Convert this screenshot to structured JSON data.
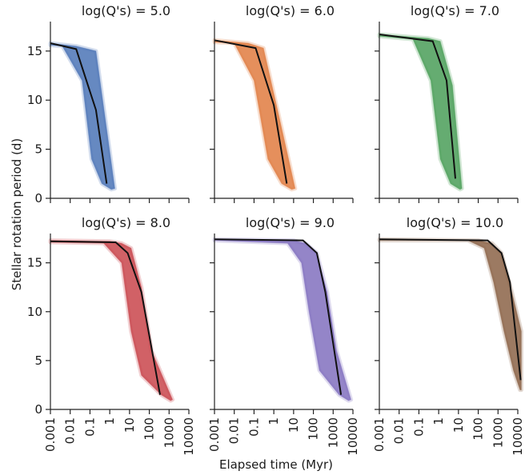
{
  "figure": {
    "xlabel": "Elapsed time (Myr)",
    "ylabel": "Stellar rotation period (d)"
  },
  "chart_data": [
    {
      "type": "area",
      "title": "log(Q's) = 5.0",
      "color": "#4b74b6",
      "x_scale": "log",
      "xlim": [
        0.001,
        10000
      ],
      "ylim": [
        0,
        18
      ],
      "x_ticks": [
        "0.001",
        "0.01",
        "0.1",
        "1",
        "10",
        "100",
        "1000",
        "10000"
      ],
      "y_ticks": [
        "0",
        "5",
        "10",
        "15"
      ],
      "band_upper": [
        [
          0.001,
          15.8
        ],
        [
          0.02,
          15.5
        ],
        [
          0.2,
          15.0
        ],
        [
          0.6,
          8.0
        ],
        [
          1.8,
          1.0
        ]
      ],
      "band_lower": [
        [
          1.2,
          0.9
        ],
        [
          0.4,
          1.5
        ],
        [
          0.12,
          4.0
        ],
        [
          0.04,
          12.0
        ],
        [
          0.004,
          15.5
        ],
        [
          0.001,
          15.6
        ]
      ],
      "median": [
        [
          0.001,
          15.8
        ],
        [
          0.02,
          15.2
        ],
        [
          0.2,
          9.0
        ],
        [
          0.7,
          1.5
        ]
      ]
    },
    {
      "type": "area",
      "title": "log(Q's) = 6.0",
      "color": "#e07b3f",
      "x_scale": "log",
      "xlim": [
        0.001,
        10000
      ],
      "ylim": [
        0,
        18
      ],
      "x_ticks": [
        "0.001",
        "0.01",
        "0.1",
        "1",
        "10",
        "100",
        "1000",
        "10000"
      ],
      "y_ticks": [
        "0",
        "5",
        "10",
        "15"
      ],
      "band_upper": [
        [
          0.001,
          16.1
        ],
        [
          0.05,
          15.8
        ],
        [
          0.3,
          15.3
        ],
        [
          2.0,
          8.0
        ],
        [
          12,
          1.0
        ]
      ],
      "band_lower": [
        [
          8,
          0.9
        ],
        [
          2.5,
          1.5
        ],
        [
          0.5,
          4.0
        ],
        [
          0.1,
          12.0
        ],
        [
          0.01,
          15.8
        ],
        [
          0.001,
          15.9
        ]
      ],
      "median": [
        [
          0.001,
          16.1
        ],
        [
          0.12,
          15.3
        ],
        [
          1.0,
          9.5
        ],
        [
          4.5,
          1.5
        ]
      ]
    },
    {
      "type": "area",
      "title": "log(Q's) = 7.0",
      "color": "#4a9e58",
      "x_scale": "log",
      "xlim": [
        0.001,
        10000
      ],
      "ylim": [
        0,
        18
      ],
      "x_ticks": [
        "0.001",
        "0.01",
        "0.1",
        "1",
        "10",
        "100",
        "1000",
        "10000"
      ],
      "y_ticks": [
        "0",
        "5",
        "10",
        "15"
      ],
      "band_upper": [
        [
          0.001,
          16.7
        ],
        [
          0.3,
          16.3
        ],
        [
          1.2,
          16.0
        ],
        [
          5,
          11.5
        ],
        [
          15,
          1.0
        ]
      ],
      "band_lower": [
        [
          12,
          0.9
        ],
        [
          4,
          1.5
        ],
        [
          1.2,
          4.0
        ],
        [
          0.4,
          12.0
        ],
        [
          0.05,
          16.2
        ],
        [
          0.001,
          16.5
        ]
      ],
      "median": [
        [
          0.001,
          16.7
        ],
        [
          0.5,
          16.0
        ],
        [
          2.5,
          12.0
        ],
        [
          7,
          2.0
        ]
      ]
    },
    {
      "type": "area",
      "title": "log(Q's) = 8.0",
      "color": "#c9454b",
      "x_scale": "log",
      "xlim": [
        0.001,
        10000
      ],
      "ylim": [
        0,
        18
      ],
      "x_ticks": [
        "0.001",
        "0.01",
        "0.1",
        "1",
        "10",
        "100",
        "1000",
        "10000"
      ],
      "y_ticks": [
        "0",
        "5",
        "10",
        "15"
      ],
      "band_upper": [
        [
          0.001,
          17.3
        ],
        [
          1,
          17.2
        ],
        [
          4,
          17.0
        ],
        [
          12,
          16.5
        ],
        [
          40,
          12.5
        ],
        [
          130,
          6.0
        ],
        [
          1500,
          1.0
        ]
      ],
      "band_lower": [
        [
          1200,
          0.9
        ],
        [
          400,
          1.5
        ],
        [
          40,
          3.5
        ],
        [
          12,
          8.0
        ],
        [
          4,
          15.0
        ],
        [
          0.5,
          17.0
        ],
        [
          0.001,
          17.1
        ]
      ],
      "median": [
        [
          0.001,
          17.2
        ],
        [
          2,
          17.1
        ],
        [
          8,
          16.0
        ],
        [
          40,
          12.0
        ],
        [
          350,
          1.5
        ]
      ]
    },
    {
      "type": "area",
      "title": "log(Q's) = 9.0",
      "color": "#8170be",
      "x_scale": "log",
      "xlim": [
        0.001,
        10000
      ],
      "ylim": [
        0,
        18
      ],
      "x_ticks": [
        "0.001",
        "0.01",
        "0.1",
        "1",
        "10",
        "100",
        "1000",
        "10000"
      ],
      "y_ticks": [
        "0",
        "5",
        "10",
        "15"
      ],
      "band_upper": [
        [
          0.001,
          17.4
        ],
        [
          10,
          17.3
        ],
        [
          40,
          17.0
        ],
        [
          150,
          16.0
        ],
        [
          500,
          12.0
        ],
        [
          1500,
          6.0
        ],
        [
          8000,
          1.0
        ]
      ],
      "band_lower": [
        [
          6000,
          0.9
        ],
        [
          2000,
          1.5
        ],
        [
          200,
          4.0
        ],
        [
          60,
          10.0
        ],
        [
          25,
          15.0
        ],
        [
          5,
          17.0
        ],
        [
          0.001,
          17.3
        ]
      ],
      "median": [
        [
          0.001,
          17.4
        ],
        [
          30,
          17.3
        ],
        [
          150,
          16.0
        ],
        [
          400,
          12.0
        ],
        [
          2500,
          1.5
        ]
      ]
    },
    {
      "type": "area",
      "title": "log(Q's) = 10.0",
      "color": "#8b6347",
      "x_scale": "log",
      "xlim": [
        0.001,
        10000
      ],
      "ylim": [
        0,
        18
      ],
      "x_ticks": [
        "0.001",
        "0.01",
        "0.1",
        "1",
        "10",
        "100",
        "1000",
        "10000"
      ],
      "y_ticks": [
        "0",
        "5",
        "10",
        "15"
      ],
      "band_upper": [
        [
          0.001,
          17.4
        ],
        [
          100,
          17.3
        ],
        [
          500,
          17.0
        ],
        [
          1500,
          16.0
        ],
        [
          5000,
          12.0
        ],
        [
          15000,
          8.0
        ],
        [
          15000,
          2.0
        ]
      ],
      "band_lower": [
        [
          13000,
          2.0
        ],
        [
          6000,
          4.0
        ],
        [
          2000,
          8.0
        ],
        [
          600,
          13.0
        ],
        [
          200,
          16.5
        ],
        [
          30,
          17.3
        ],
        [
          0.001,
          17.3
        ]
      ],
      "median": [
        [
          0.001,
          17.4
        ],
        [
          300,
          17.3
        ],
        [
          1500,
          16.0
        ],
        [
          4000,
          13.0
        ],
        [
          14000,
          3.0
        ]
      ]
    }
  ]
}
